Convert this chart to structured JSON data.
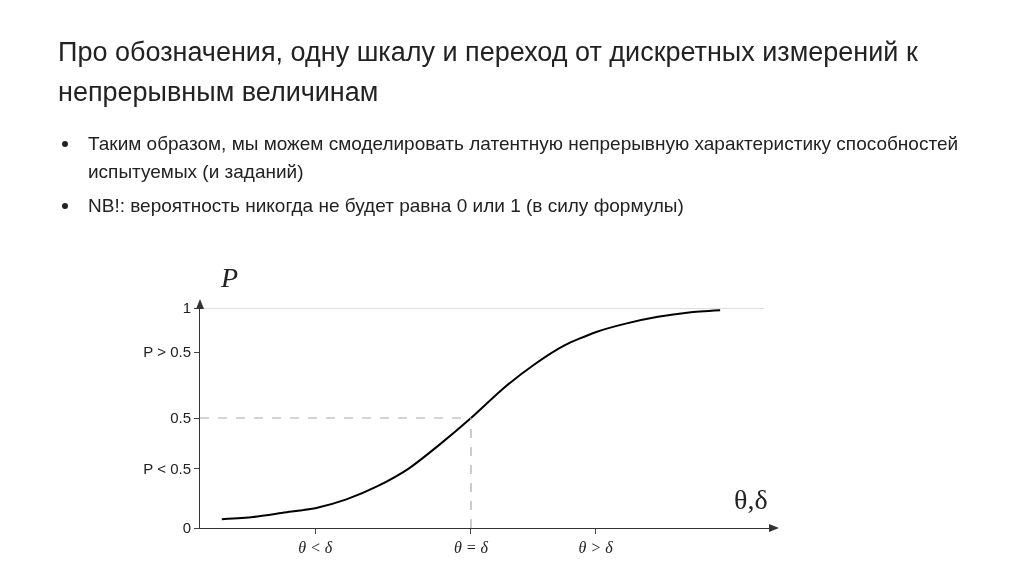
{
  "chart_data": {
    "type": "line",
    "title": "Про обозначения, одну шкалу и переход от дискретных измерений к непрерывным величинам",
    "annotations": [
      "Таким образом, мы можем смоделировать латентную непрерывную характеристику способностей испытуемых (и заданий)",
      "NB!: вероятность никогда не будет равна 0 или 1 (в силу формулы)"
    ],
    "xlabel": "θ,δ",
    "ylabel": "P",
    "categories": [
      null,
      null,
      null,
      "θ < δ",
      null,
      null,
      null,
      null,
      "θ = δ",
      null,
      null,
      null,
      "θ > δ",
      null,
      null,
      null,
      null
    ],
    "series": [
      {
        "color": "#000000",
        "values": [
          0.04,
          0.05,
          0.07,
          0.09,
          0.13,
          0.19,
          0.27,
          0.38,
          0.5,
          0.63,
          0.74,
          0.83,
          0.89,
          0.93,
          0.96,
          0.98,
          0.99
        ]
      }
    ],
    "ylim": [
      0,
      1
    ],
    "yticks": [
      0,
      {
        "value": 0.27,
        "label": "P < 0.5"
      },
      0.5,
      {
        "value": 0.8,
        "label": "P > 0.5"
      },
      1
    ],
    "ref_lines": [
      {
        "axis": "y",
        "value": 1,
        "color": "#bbbbbb",
        "line_style": "solid"
      },
      {
        "axis": "y",
        "value": 0.5,
        "color": "#aaaaaa",
        "line_style": "dashed"
      },
      {
        "axis": "x",
        "value": "θ = δ",
        "color": "#aaaaaa",
        "line_style": "dashed"
      }
    ],
    "grid": false,
    "marker": "none",
    "line_style": "solid"
  }
}
